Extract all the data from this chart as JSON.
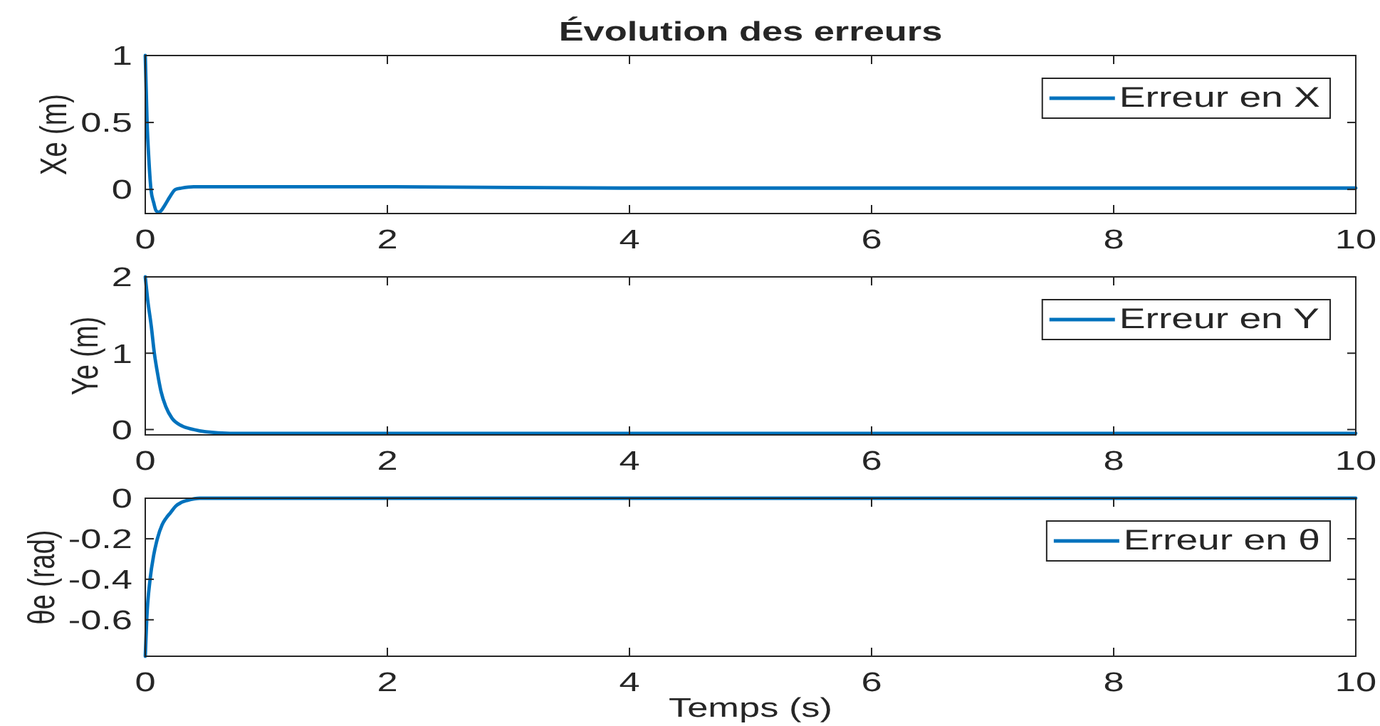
{
  "chart_data": [
    {
      "type": "line",
      "title": "Évolution des erreurs",
      "ylabel": "Xe (m)",
      "x": [
        0,
        0.015,
        0.03,
        0.047,
        0.07,
        0.09,
        0.11,
        0.13,
        0.16,
        0.2,
        0.25,
        0.3,
        0.4,
        0.6,
        1,
        2,
        4,
        6,
        8,
        10
      ],
      "series": [
        {
          "name": "Erreur en X",
          "color": "#0072bd",
          "values": [
            1,
            0.5,
            0.22,
            0,
            -0.1,
            -0.16,
            -0.17,
            -0.16,
            -0.12,
            -0.06,
            0,
            0.01,
            0.02,
            0.02,
            0.02,
            0.02,
            0.01,
            0.01,
            0.01,
            0.01
          ]
        }
      ],
      "xlim": [
        0,
        10
      ],
      "xticks": [
        0,
        2,
        4,
        6,
        8,
        10
      ],
      "ylim": [
        -0.18,
        1
      ],
      "yticks": [
        0,
        0.5,
        1
      ],
      "legend": "top right"
    },
    {
      "type": "line",
      "ylabel": "Ye (m)",
      "x": [
        0,
        0.02,
        0.05,
        0.075,
        0.1,
        0.13,
        0.17,
        0.22,
        0.3,
        0.4,
        0.5,
        0.7,
        1,
        2,
        4,
        6,
        8,
        10
      ],
      "series": [
        {
          "name": "Erreur en Y",
          "color": "#0072bd",
          "values": [
            2,
            1.7,
            1.35,
            1,
            0.75,
            0.5,
            0.3,
            0.15,
            0.05,
            0,
            -0.03,
            -0.05,
            -0.05,
            -0.05,
            -0.05,
            -0.05,
            -0.05,
            -0.05
          ]
        }
      ],
      "xlim": [
        0,
        10
      ],
      "xticks": [
        0,
        2,
        4,
        6,
        8,
        10
      ],
      "ylim": [
        -0.07,
        2
      ],
      "yticks": [
        0,
        1,
        2
      ],
      "legend": "top right"
    },
    {
      "type": "line",
      "xlabel": "Temps (s)",
      "ylabel": "θe (rad)",
      "x": [
        0,
        0.012,
        0.04,
        0.07,
        0.1,
        0.14,
        0.17,
        0.21,
        0.25,
        0.3,
        0.35,
        0.45,
        0.6,
        1,
        10
      ],
      "series": [
        {
          "name": "Erreur en θ",
          "color": "#0072bd",
          "values": [
            -0.78,
            -0.6,
            -0.4,
            -0.28,
            -0.2,
            -0.13,
            -0.1,
            -0.07,
            -0.04,
            -0.02,
            -0.01,
            0,
            0,
            0,
            0
          ]
        }
      ],
      "xlim": [
        0,
        10
      ],
      "xticks": [
        0,
        2,
        4,
        6,
        8,
        10
      ],
      "ylim": [
        -0.78,
        0
      ],
      "yticks": [
        -0.6,
        -0.4,
        -0.2,
        0
      ],
      "legend": "top right"
    }
  ]
}
